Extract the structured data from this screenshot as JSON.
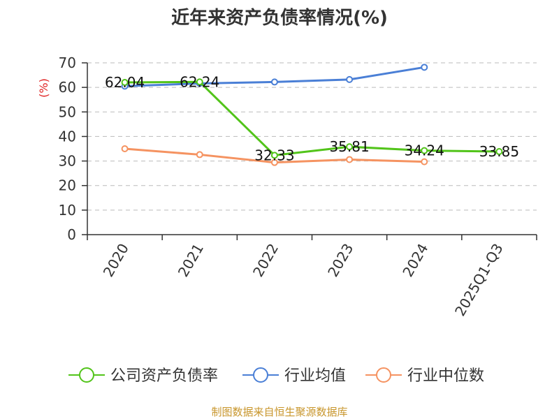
{
  "source": "制图数据来自恒生聚源数据库",
  "chart_data": {
    "type": "line",
    "title": "近年来资产负债率情况(%)",
    "ylabel": "(%)",
    "xlabel": "",
    "categories": [
      "2020",
      "2021",
      "2022",
      "2023",
      "2024",
      "2025Q1-Q3"
    ],
    "ylim": [
      0,
      70
    ],
    "yticks": [
      0,
      10,
      20,
      30,
      40,
      50,
      60,
      70
    ],
    "grid": true,
    "legend_position": "bottom",
    "series": [
      {
        "name": "公司资产负债率",
        "color": "#52c41a",
        "values": [
          62.04,
          62.24,
          32.33,
          35.81,
          34.24,
          33.85
        ],
        "labels": [
          "62.04",
          "62.24",
          "32.33",
          "35.81",
          "34.24",
          "33.85"
        ]
      },
      {
        "name": "行业均值",
        "color": "#4a7fd6",
        "values": [
          60.5,
          61.6,
          62.2,
          63.2,
          68.2,
          null
        ]
      },
      {
        "name": "行业中位数",
        "color": "#f59361",
        "values": [
          35.0,
          32.6,
          29.4,
          30.6,
          29.7,
          null
        ]
      }
    ]
  }
}
